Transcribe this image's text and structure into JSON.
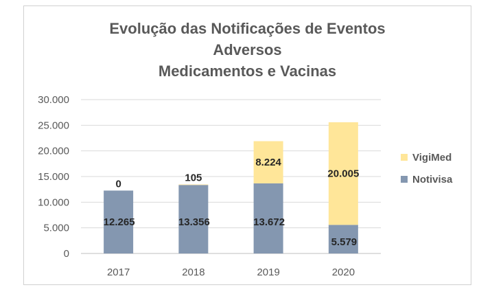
{
  "chart_data": {
    "type": "bar",
    "stacked": true,
    "title_lines": [
      "Evolução  das Notificações de Eventos",
      "Adversos",
      "Medicamentos  e Vacinas"
    ],
    "categories": [
      "2017",
      "2018",
      "2019",
      "2020"
    ],
    "series": [
      {
        "name": "Notivisa",
        "values": [
          12265,
          13356,
          13672,
          5579
        ],
        "labels": [
          "12.265",
          "13.356",
          "13.672",
          "5.579"
        ],
        "color": "#8497b0"
      },
      {
        "name": "VigiMed",
        "values": [
          0,
          105,
          8224,
          20005
        ],
        "labels": [
          "0",
          "105",
          "8.224",
          "20.005"
        ],
        "color": "#ffe699"
      }
    ],
    "ylim": [
      0,
      30000
    ],
    "yticks": [
      0,
      5000,
      10000,
      15000,
      20000,
      25000,
      30000
    ],
    "ytick_labels": [
      "0",
      "5.000",
      "10.000",
      "15.000",
      "20.000",
      "25.000",
      "30.000"
    ],
    "grid": true,
    "legend_position": "right"
  }
}
